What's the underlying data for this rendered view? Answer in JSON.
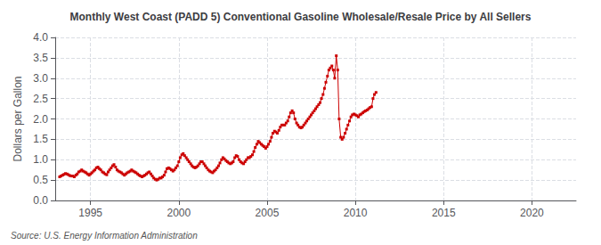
{
  "chart_data": {
    "type": "line",
    "title": "Monthly West Coast (PADD 5) Conventional Gasoline Wholesale/Resale Price by All Sellers",
    "ylabel": "Dollars per Gallon",
    "source": "Source: U.S. Energy Information Administration",
    "color": "#CC0000",
    "marker": "square",
    "line_style": "solid",
    "grid": true,
    "xlim": [
      1993.0,
      2022.5
    ],
    "xticks": [
      1995,
      2000,
      2005,
      2010,
      2015,
      2020
    ],
    "ylim": [
      0.0,
      4.0
    ],
    "yticks": [
      {
        "value": 0.0,
        "label": "0.0"
      },
      0.5,
      {
        "value": 1.0,
        "label": "1.0"
      },
      1.5,
      {
        "value": 2.0,
        "label": "2.0"
      },
      2.5,
      {
        "value": 3.0,
        "label": "3.0"
      },
      3.5,
      {
        "value": 4.0,
        "label": "4.0"
      }
    ],
    "x": [
      1993.25,
      1993.33,
      1993.42,
      1993.5,
      1993.58,
      1993.67,
      1993.75,
      1993.83,
      1993.92,
      1994.0,
      1994.08,
      1994.17,
      1994.25,
      1994.33,
      1994.42,
      1994.5,
      1994.58,
      1994.67,
      1994.75,
      1994.83,
      1994.92,
      1995.0,
      1995.08,
      1995.17,
      1995.25,
      1995.33,
      1995.42,
      1995.5,
      1995.58,
      1995.67,
      1995.75,
      1995.83,
      1995.92,
      1996.0,
      1996.08,
      1996.17,
      1996.25,
      1996.33,
      1996.42,
      1996.5,
      1996.58,
      1996.67,
      1996.75,
      1996.83,
      1996.92,
      1997.0,
      1997.08,
      1997.17,
      1997.25,
      1997.33,
      1997.42,
      1997.5,
      1997.58,
      1997.67,
      1997.75,
      1997.83,
      1997.92,
      1998.0,
      1998.08,
      1998.17,
      1998.25,
      1998.33,
      1998.42,
      1998.5,
      1998.58,
      1998.67,
      1998.75,
      1998.83,
      1998.92,
      1999.0,
      1999.08,
      1999.17,
      1999.25,
      1999.33,
      1999.42,
      1999.5,
      1999.58,
      1999.67,
      1999.75,
      1999.83,
      1999.92,
      2000.0,
      2000.08,
      2000.17,
      2000.25,
      2000.33,
      2000.42,
      2000.5,
      2000.58,
      2000.67,
      2000.75,
      2000.83,
      2000.92,
      2001.0,
      2001.08,
      2001.17,
      2001.25,
      2001.33,
      2001.42,
      2001.5,
      2001.58,
      2001.67,
      2001.75,
      2001.83,
      2001.92,
      2002.0,
      2002.08,
      2002.17,
      2002.25,
      2002.33,
      2002.42,
      2002.5,
      2002.58,
      2002.67,
      2002.75,
      2002.83,
      2002.92,
      2003.0,
      2003.08,
      2003.17,
      2003.25,
      2003.33,
      2003.42,
      2003.5,
      2003.58,
      2003.67,
      2003.75,
      2003.83,
      2003.92,
      2004.0,
      2004.08,
      2004.17,
      2004.25,
      2004.33,
      2004.42,
      2004.5,
      2004.58,
      2004.67,
      2004.75,
      2004.83,
      2004.92,
      2005.0,
      2005.08,
      2005.17,
      2005.25,
      2005.33,
      2005.42,
      2005.5,
      2005.58,
      2005.67,
      2005.75,
      2005.83,
      2005.92,
      2006.0,
      2006.08,
      2006.17,
      2006.25,
      2006.33,
      2006.42,
      2006.5,
      2006.58,
      2006.67,
      2006.75,
      2006.83,
      2006.92,
      2007.0,
      2007.08,
      2007.17,
      2007.25,
      2007.33,
      2007.42,
      2007.5,
      2007.58,
      2007.67,
      2007.75,
      2007.83,
      2007.92,
      2008.0,
      2008.08,
      2008.17,
      2008.25,
      2008.33,
      2008.42,
      2008.5,
      2008.58,
      2008.67,
      2008.75,
      2008.83,
      2008.92,
      2009.0,
      2009.08,
      2009.17,
      2009.25,
      2009.33,
      2009.42,
      2009.5,
      2009.58,
      2009.67,
      2009.75,
      2009.83,
      2009.92,
      2010.0,
      2010.08,
      2010.17,
      2010.25,
      2010.33,
      2010.42,
      2010.5,
      2010.58,
      2010.67,
      2010.75,
      2010.83,
      2010.92,
      2011.0,
      2011.08,
      2011.17
    ],
    "values": [
      0.58,
      0.6,
      0.62,
      0.64,
      0.66,
      0.65,
      0.63,
      0.61,
      0.6,
      0.6,
      0.58,
      0.62,
      0.65,
      0.7,
      0.72,
      0.75,
      0.72,
      0.7,
      0.68,
      0.65,
      0.62,
      0.65,
      0.68,
      0.72,
      0.75,
      0.8,
      0.82,
      0.78,
      0.75,
      0.7,
      0.68,
      0.65,
      0.63,
      0.7,
      0.75,
      0.8,
      0.85,
      0.88,
      0.82,
      0.75,
      0.72,
      0.7,
      0.68,
      0.65,
      0.62,
      0.65,
      0.68,
      0.7,
      0.72,
      0.75,
      0.72,
      0.7,
      0.68,
      0.65,
      0.62,
      0.6,
      0.58,
      0.6,
      0.62,
      0.65,
      0.68,
      0.7,
      0.65,
      0.6,
      0.55,
      0.52,
      0.5,
      0.52,
      0.55,
      0.55,
      0.58,
      0.62,
      0.7,
      0.78,
      0.8,
      0.78,
      0.75,
      0.72,
      0.75,
      0.8,
      0.85,
      0.95,
      1.05,
      1.12,
      1.15,
      1.1,
      1.05,
      1.0,
      0.95,
      0.9,
      0.85,
      0.82,
      0.8,
      0.82,
      0.85,
      0.9,
      0.95,
      0.95,
      0.9,
      0.85,
      0.8,
      0.75,
      0.72,
      0.7,
      0.68,
      0.72,
      0.75,
      0.8,
      0.85,
      0.92,
      1.0,
      1.05,
      1.02,
      0.98,
      0.95,
      0.92,
      0.9,
      0.92,
      0.95,
      1.05,
      1.1,
      1.08,
      1.0,
      0.95,
      0.92,
      0.9,
      0.95,
      1.0,
      1.05,
      1.05,
      1.08,
      1.12,
      1.2,
      1.3,
      1.38,
      1.45,
      1.42,
      1.38,
      1.35,
      1.32,
      1.28,
      1.32,
      1.38,
      1.45,
      1.55,
      1.65,
      1.7,
      1.68,
      1.65,
      1.72,
      1.8,
      1.85,
      1.85,
      1.85,
      1.9,
      1.95,
      2.05,
      2.15,
      2.2,
      2.15,
      2.0,
      1.9,
      1.85,
      1.8,
      1.78,
      1.8,
      1.85,
      1.9,
      1.95,
      2.0,
      2.05,
      2.1,
      2.15,
      2.2,
      2.25,
      2.3,
      2.35,
      2.4,
      2.5,
      2.6,
      2.75,
      2.9,
      3.05,
      3.2,
      3.25,
      3.3,
      3.2,
      3.0,
      3.55,
      3.2,
      2.0,
      1.55,
      1.5,
      1.55,
      1.65,
      1.75,
      1.85,
      1.95,
      2.05,
      2.1,
      2.12,
      2.1,
      2.08,
      2.05,
      2.1,
      2.12,
      2.15,
      2.18,
      2.2,
      2.22,
      2.25,
      2.28,
      2.3,
      2.5,
      2.6,
      2.65
    ]
  }
}
